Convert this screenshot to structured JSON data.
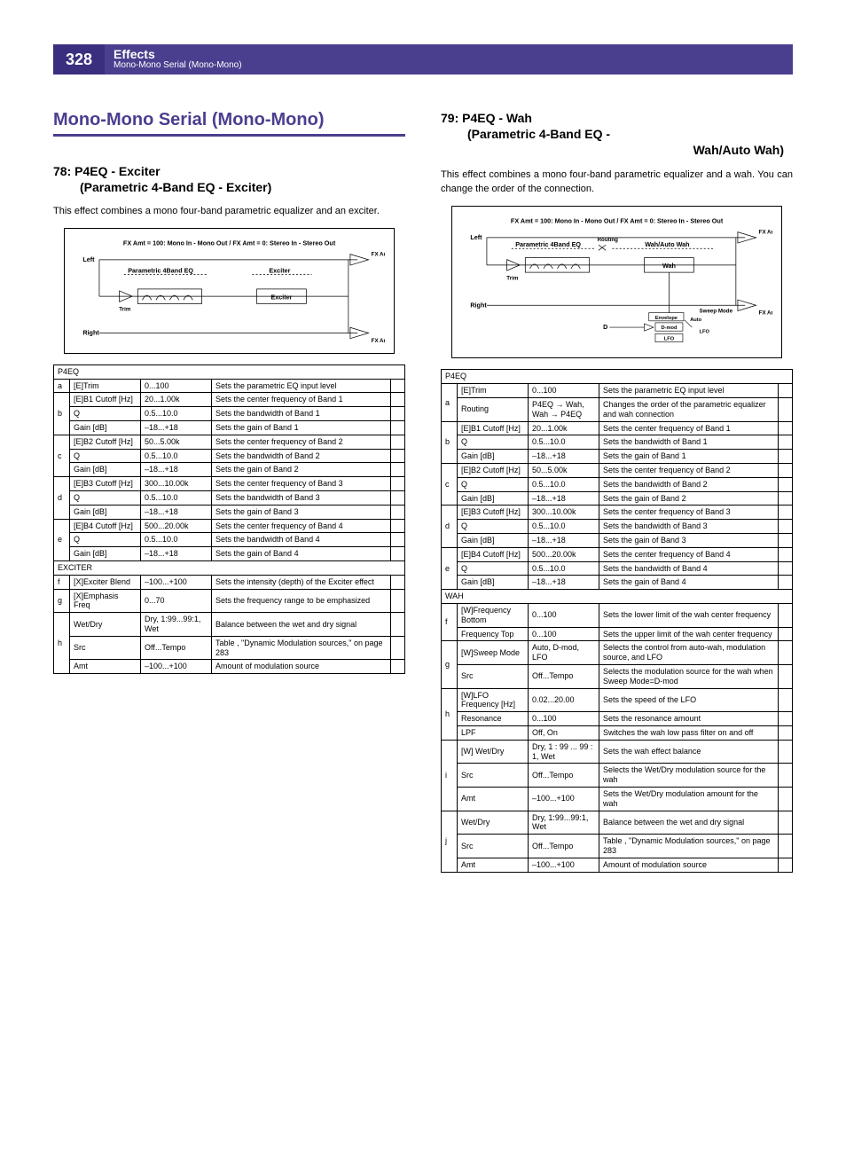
{
  "header": {
    "page_number": "328",
    "title": "Effects",
    "subtitle": "Mono-Mono Serial (Mono-Mono)"
  },
  "left": {
    "section_title": "Mono-Mono Serial (Mono-Mono)",
    "effect_num": "78:",
    "effect_name": "P4EQ - Exciter",
    "effect_sub": "(Parametric 4-Band EQ - Exciter)",
    "body": "This effect combines a mono four-band parametric equalizer and an exciter.",
    "diagram": {
      "header": "FX Amt = 100: Mono In - Mono Out  /  FX Amt = 0: Stereo In - Stereo Out",
      "left_label": "Left",
      "right_label": "Right",
      "block1": "Parametric 4Band EQ",
      "block2": "Exciter",
      "trim": "Trim",
      "fxamt": "FX Amt"
    },
    "table": {
      "group1": "P4EQ",
      "group2": "EXCITER",
      "rows": [
        {
          "g": "a",
          "p": "[E]Trim",
          "r": "0...100",
          "d": "Sets the parametric EQ input level"
        },
        {
          "g": "b",
          "p": "[E]B1 Cutoff [Hz]",
          "r": "20...1.00k",
          "d": "Sets the center frequency of Band 1"
        },
        {
          "g": "b",
          "p": "Q",
          "r": "0.5...10.0",
          "d": "Sets the bandwidth of Band 1"
        },
        {
          "g": "b",
          "p": "Gain [dB]",
          "r": "–18...+18",
          "d": "Sets the gain of Band 1"
        },
        {
          "g": "c",
          "p": "[E]B2 Cutoff [Hz]",
          "r": "50...5.00k",
          "d": "Sets the center frequency of Band 2"
        },
        {
          "g": "c",
          "p": "Q",
          "r": "0.5...10.0",
          "d": "Sets the bandwidth of Band 2"
        },
        {
          "g": "c",
          "p": "Gain [dB]",
          "r": "–18...+18",
          "d": "Sets the gain of Band 2"
        },
        {
          "g": "d",
          "p": "[E]B3 Cutoff [Hz]",
          "r": "300...10.00k",
          "d": "Sets the center frequency of Band 3"
        },
        {
          "g": "d",
          "p": "Q",
          "r": "0.5...10.0",
          "d": "Sets the bandwidth of Band 3"
        },
        {
          "g": "d",
          "p": "Gain [dB]",
          "r": "–18...+18",
          "d": "Sets the gain of Band 3"
        },
        {
          "g": "e",
          "p": "[E]B4 Cutoff [Hz]",
          "r": "500...20.00k",
          "d": "Sets the center frequency of Band 4"
        },
        {
          "g": "e",
          "p": "Q",
          "r": "0.5...10.0",
          "d": "Sets the bandwidth of Band 4"
        },
        {
          "g": "e",
          "p": "Gain [dB]",
          "r": "–18...+18",
          "d": "Sets the gain of Band 4"
        },
        {
          "g": "f",
          "p": "[X]Exciter Blend",
          "r": "–100...+100",
          "d": "Sets the intensity (depth) of the Exciter effect"
        },
        {
          "g": "g",
          "p": "[X]Emphasis Freq",
          "r": "0...70",
          "d": "Sets the frequency range to be emphasized"
        },
        {
          "g": "h",
          "p": "Wet/Dry",
          "r": "Dry, 1:99...99:1, Wet",
          "d": "Balance between the wet and dry signal"
        },
        {
          "g": "h",
          "p": "Src",
          "r": "Off...Tempo",
          "d": "Table , \"Dynamic Modulation sources,\" on page 283"
        },
        {
          "g": "h",
          "p": "Amt",
          "r": "–100...+100",
          "d": "Amount of modulation source"
        }
      ]
    }
  },
  "right": {
    "effect_num": "79:",
    "effect_name": "P4EQ - Wah",
    "effect_sub1": "(Parametric 4-Band EQ -",
    "effect_sub2": "Wah/Auto Wah)",
    "body": "This effect combines a mono four-band parametric equalizer and a wah. You can change the order of the connection.",
    "diagram": {
      "header": "FX Amt = 100: Mono In - Mono Out  /  FX Amt = 0: Stereo In - Stereo Out",
      "left_label": "Left",
      "right_label": "Right",
      "block1": "Parametric 4Band EQ",
      "block2": "Wah/Auto Wah",
      "wah": "Wah",
      "trim": "Trim",
      "routing": "Routing",
      "sweep": "Sweep Mode",
      "env": "Envelope",
      "auto": "Auto",
      "dmod": "D-mod",
      "lfo": "LFO",
      "d": "D",
      "fxamt": "FX Amt"
    },
    "table": {
      "group1": "P4EQ",
      "group2": "WAH",
      "rows1": [
        {
          "g": "a",
          "p": "[E]Trim",
          "r": "0...100",
          "d": "Sets the parametric EQ input level"
        },
        {
          "g": "a",
          "p": "Routing",
          "r": "P4EQ → Wah, Wah → P4EQ",
          "d": "Changes the order of the parametric equalizer and wah connection"
        },
        {
          "g": "b",
          "p": "[E]B1 Cutoff [Hz]",
          "r": "20...1.00k",
          "d": "Sets the center frequency of Band 1"
        },
        {
          "g": "b",
          "p": "Q",
          "r": "0.5...10.0",
          "d": "Sets the bandwidth of Band 1"
        },
        {
          "g": "b",
          "p": "Gain [dB]",
          "r": "–18...+18",
          "d": "Sets the gain of Band 1"
        },
        {
          "g": "c",
          "p": "[E]B2 Cutoff [Hz]",
          "r": "50...5.00k",
          "d": "Sets the center frequency of Band 2"
        },
        {
          "g": "c",
          "p": "Q",
          "r": "0.5...10.0",
          "d": "Sets the bandwidth of Band 2"
        },
        {
          "g": "c",
          "p": "Gain [dB]",
          "r": "–18...+18",
          "d": "Sets the gain of Band 2"
        },
        {
          "g": "d",
          "p": "[E]B3 Cutoff [Hz]",
          "r": "300...10.00k",
          "d": "Sets the center frequency of Band 3"
        },
        {
          "g": "d",
          "p": "Q",
          "r": "0.5...10.0",
          "d": "Sets the bandwidth of Band 3"
        },
        {
          "g": "d",
          "p": "Gain [dB]",
          "r": "–18...+18",
          "d": "Sets the gain of Band 3"
        },
        {
          "g": "e",
          "p": "[E]B4 Cutoff [Hz]",
          "r": "500...20.00k",
          "d": "Sets the center frequency of Band 4"
        },
        {
          "g": "e",
          "p": "Q",
          "r": "0.5...10.0",
          "d": "Sets the bandwidth of Band 4"
        },
        {
          "g": "e",
          "p": "Gain [dB]",
          "r": "–18...+18",
          "d": "Sets the gain of Band 4"
        }
      ],
      "rows2": [
        {
          "g": "f",
          "p": "[W]Frequency Bottom",
          "r": "0...100",
          "d": "Sets the lower limit of the wah center frequency"
        },
        {
          "g": "f",
          "p": "Frequency Top",
          "r": "0...100",
          "d": "Sets the upper limit of the wah center frequency"
        },
        {
          "g": "g",
          "p": "[W]Sweep Mode",
          "r": "Auto, D-mod, LFO",
          "d": "Selects the control from auto-wah, modulation source, and LFO"
        },
        {
          "g": "g",
          "p": "Src",
          "r": "Off...Tempo",
          "d": "Selects the modulation source for the wah when Sweep Mode=D-mod"
        },
        {
          "g": "h",
          "p": "[W]LFO Frequency [Hz]",
          "r": "0.02...20.00",
          "d": "Sets the speed of the LFO"
        },
        {
          "g": "h",
          "p": "Resonance",
          "r": "0...100",
          "d": "Sets the resonance amount"
        },
        {
          "g": "h",
          "p": "LPF",
          "r": "Off, On",
          "d": "Switches the wah low pass filter on and off"
        },
        {
          "g": "i",
          "p": "[W] Wet/Dry",
          "r": "Dry, 1 : 99 ... 99 : 1, Wet",
          "d": "Sets the wah effect balance"
        },
        {
          "g": "i",
          "p": "Src",
          "r": "Off...Tempo",
          "d": "Selects the Wet/Dry modulation source for the wah"
        },
        {
          "g": "i",
          "p": "Amt",
          "r": "–100...+100",
          "d": "Sets the Wet/Dry modulation amount for the wah"
        },
        {
          "g": "j",
          "p": "Wet/Dry",
          "r": "Dry, 1:99...99:1, Wet",
          "d": "Balance between the wet and dry signal"
        },
        {
          "g": "j",
          "p": "Src",
          "r": "Off...Tempo",
          "d": "Table , \"Dynamic Modulation sources,\" on page 283"
        },
        {
          "g": "j",
          "p": "Amt",
          "r": "–100...+100",
          "d": "Amount of modulation source"
        }
      ]
    }
  }
}
